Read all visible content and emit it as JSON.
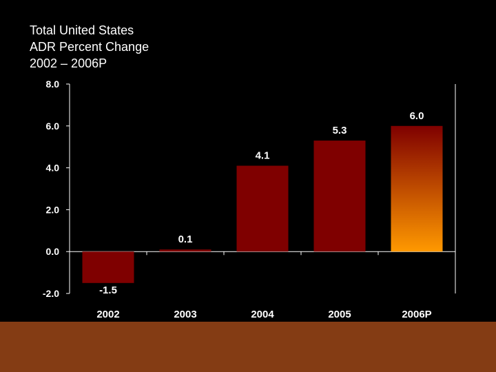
{
  "title_lines": [
    "Total United States",
    "ADR Percent Change",
    "2002 – 2006P"
  ],
  "colors": {
    "background": "#000000",
    "bar": "#7f0000",
    "bar_highlight_top": "#7f0000",
    "bar_highlight_bottom": "#ff9900",
    "text": "#ffffff",
    "footer": "#843c14"
  },
  "chart_data": {
    "type": "bar",
    "title": "Total United States ADR Percent Change 2002 – 2006P",
    "xlabel": "",
    "ylabel": "",
    "categories": [
      "2002",
      "2003",
      "2004",
      "2005",
      "2006P"
    ],
    "values": [
      -1.5,
      0.1,
      4.1,
      5.3,
      6.0
    ],
    "value_labels": [
      "-1.5",
      "0.1",
      "4.1",
      "5.3",
      "6.0"
    ],
    "highlight_index": 4,
    "ylim": [
      -2.0,
      8.0
    ],
    "yticks": [
      8.0,
      6.0,
      4.0,
      2.0,
      0.0,
      -2.0
    ],
    "ytick_labels": [
      "8.0",
      "6.0",
      "4.0",
      "2.0",
      "0.0",
      "-2.0"
    ],
    "grid": false,
    "legend": "none"
  }
}
